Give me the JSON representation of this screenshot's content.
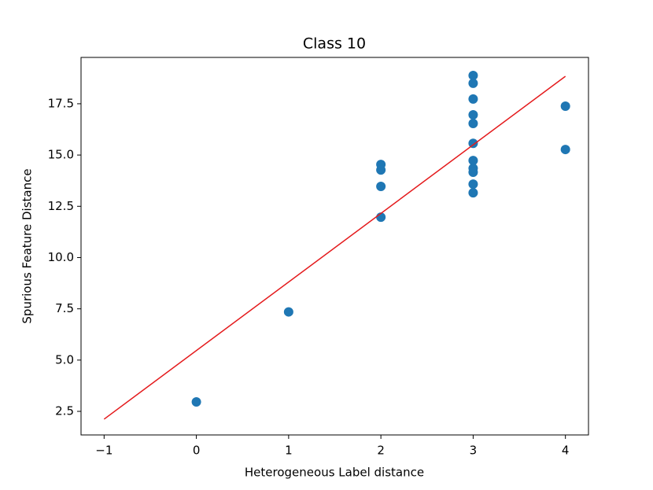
{
  "chart_data": {
    "type": "scatter",
    "title": "Class 10",
    "xlabel": "Heterogeneous Label distance",
    "ylabel": "Spurious Feature Distance",
    "xlim": [
      -1.25,
      4.25
    ],
    "ylim": [
      1.35,
      19.76
    ],
    "xticks": [
      {
        "value": -1,
        "label": "−1"
      },
      0,
      1,
      2,
      3,
      4
    ],
    "yticks": [
      2.5,
      {
        "value": 5,
        "label": "5.0"
      },
      7.5,
      {
        "value": 10,
        "label": "10.0"
      },
      12.5,
      {
        "value": 15,
        "label": "15.0"
      },
      17.5
    ],
    "series": [
      {
        "type": "scatter",
        "color": "#1f77b4",
        "x": [
          0,
          1,
          2,
          2,
          2,
          2,
          3,
          3,
          3,
          3,
          3,
          3,
          3,
          3,
          3,
          3,
          3,
          4,
          4
        ],
        "values": [
          2.96,
          7.35,
          14.54,
          14.27,
          13.47,
          11.97,
          18.88,
          18.5,
          17.73,
          16.96,
          16.54,
          15.57,
          14.73,
          14.35,
          14.16,
          13.58,
          13.16,
          17.38,
          15.27
        ]
      },
      {
        "type": "line",
        "color": "#e41a1c",
        "x": [
          -1,
          4
        ],
        "values": [
          2.12,
          18.84
        ]
      }
    ]
  }
}
